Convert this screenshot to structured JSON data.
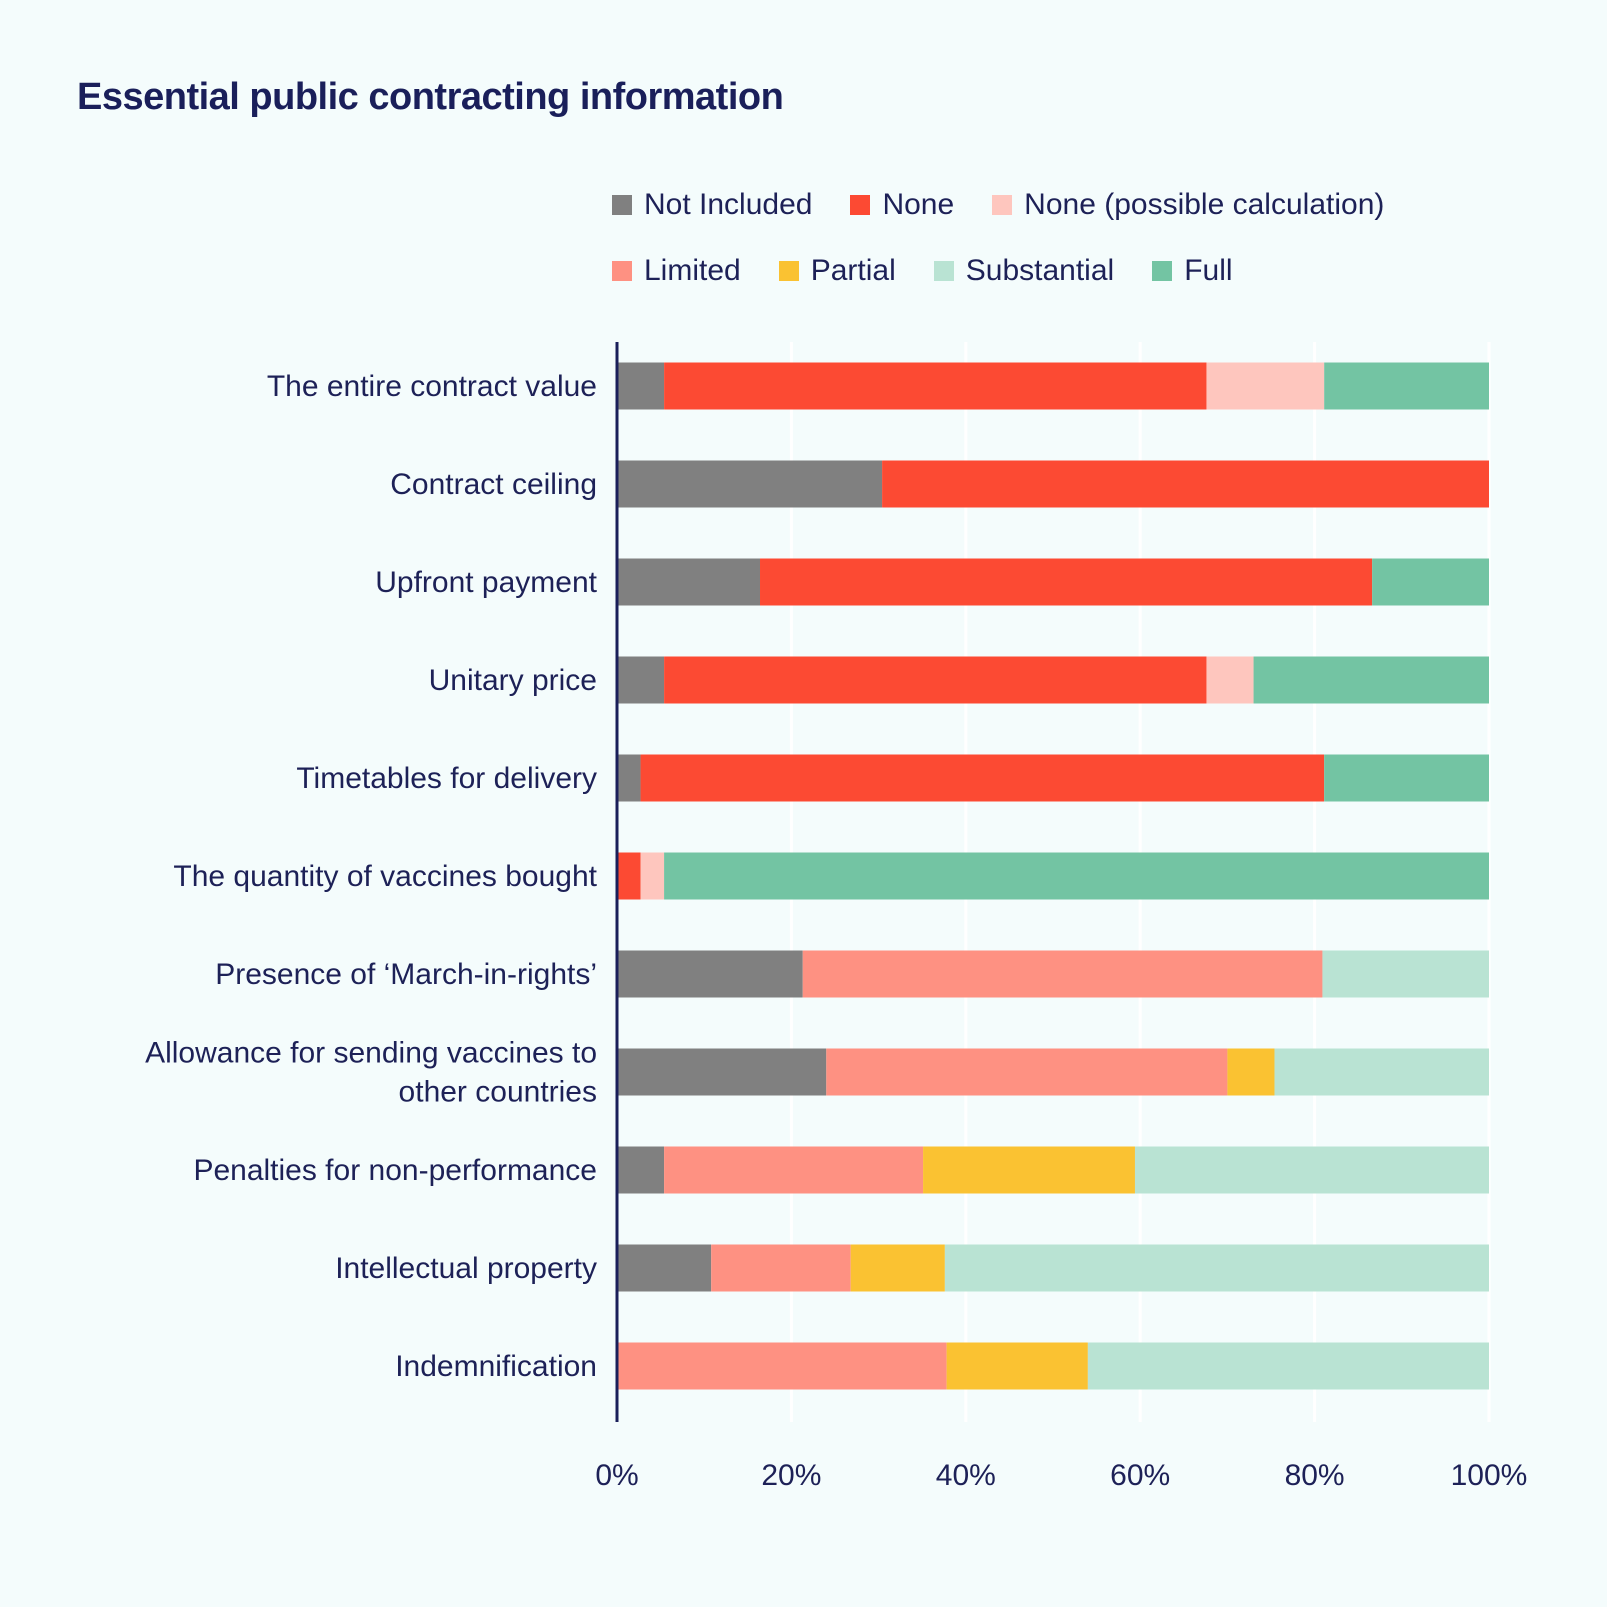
{
  "chart_data": {
    "type": "bar",
    "orientation": "horizontal",
    "stacked": true,
    "normalized": true,
    "title": "Essential public contracting information",
    "xlabel": "",
    "ylabel": "",
    "xlim": [
      0,
      100
    ],
    "x_ticks": [
      "0%",
      "20%",
      "40%",
      "60%",
      "80%",
      "100%"
    ],
    "categories": [
      "The entire contract value",
      "Contract ceiling",
      "Upfront payment",
      "Unitary price",
      "Timetables for delivery",
      "The quantity of vaccines bought",
      "Presence of ‘March-in-rights’",
      "Allowance for sending vaccines to other countries",
      "Penalties for non-performance",
      "Intellectual property",
      "Indemnification"
    ],
    "category_lines": [
      [
        "The entire contract value"
      ],
      [
        "Contract ceiling"
      ],
      [
        "Upfront payment"
      ],
      [
        "Unitary price"
      ],
      [
        "Timetables for delivery"
      ],
      [
        "The quantity of vaccines bought"
      ],
      [
        "Presence of ‘March-in-rights’"
      ],
      [
        "Allowance for sending vaccines to",
        "other countries"
      ],
      [
        "Penalties for non-performance"
      ],
      [
        "Intellectual property"
      ],
      [
        "Indemnification"
      ]
    ],
    "series": [
      {
        "name": "Not Included",
        "color": "#808080",
        "values": [
          5.4,
          30.4,
          16.4,
          5.4,
          2.7,
          0,
          21.3,
          24.0,
          5.4,
          10.8,
          0
        ]
      },
      {
        "name": "None",
        "color": "#fc4a33",
        "values": [
          62.2,
          69.6,
          70.2,
          62.2,
          78.4,
          2.7,
          0,
          0,
          0,
          0,
          0
        ]
      },
      {
        "name": "None (possible calculation)",
        "color": "#fec6be",
        "values": [
          13.5,
          0,
          0,
          5.4,
          0,
          2.7,
          0,
          0,
          0,
          0,
          0
        ]
      },
      {
        "name": "Limited",
        "color": "#fe9182",
        "values": [
          0,
          0,
          0,
          0,
          0,
          0,
          59.6,
          46.0,
          29.7,
          16.0,
          37.8
        ]
      },
      {
        "name": "Partial",
        "color": "#fac232",
        "values": [
          0,
          0,
          0,
          0,
          0,
          0,
          0,
          5.4,
          24.3,
          10.8,
          16.2
        ]
      },
      {
        "name": "Substantial",
        "color": "#b9e3d3",
        "values": [
          0,
          0,
          0,
          0,
          0,
          0,
          19.1,
          24.6,
          40.6,
          62.4,
          46.0
        ]
      },
      {
        "name": "Full",
        "color": "#73c4a3",
        "values": [
          18.9,
          0,
          13.4,
          27.0,
          18.9,
          94.6,
          0,
          0,
          0,
          0,
          0
        ]
      }
    ],
    "legend_position": "top-right",
    "grid": true
  }
}
